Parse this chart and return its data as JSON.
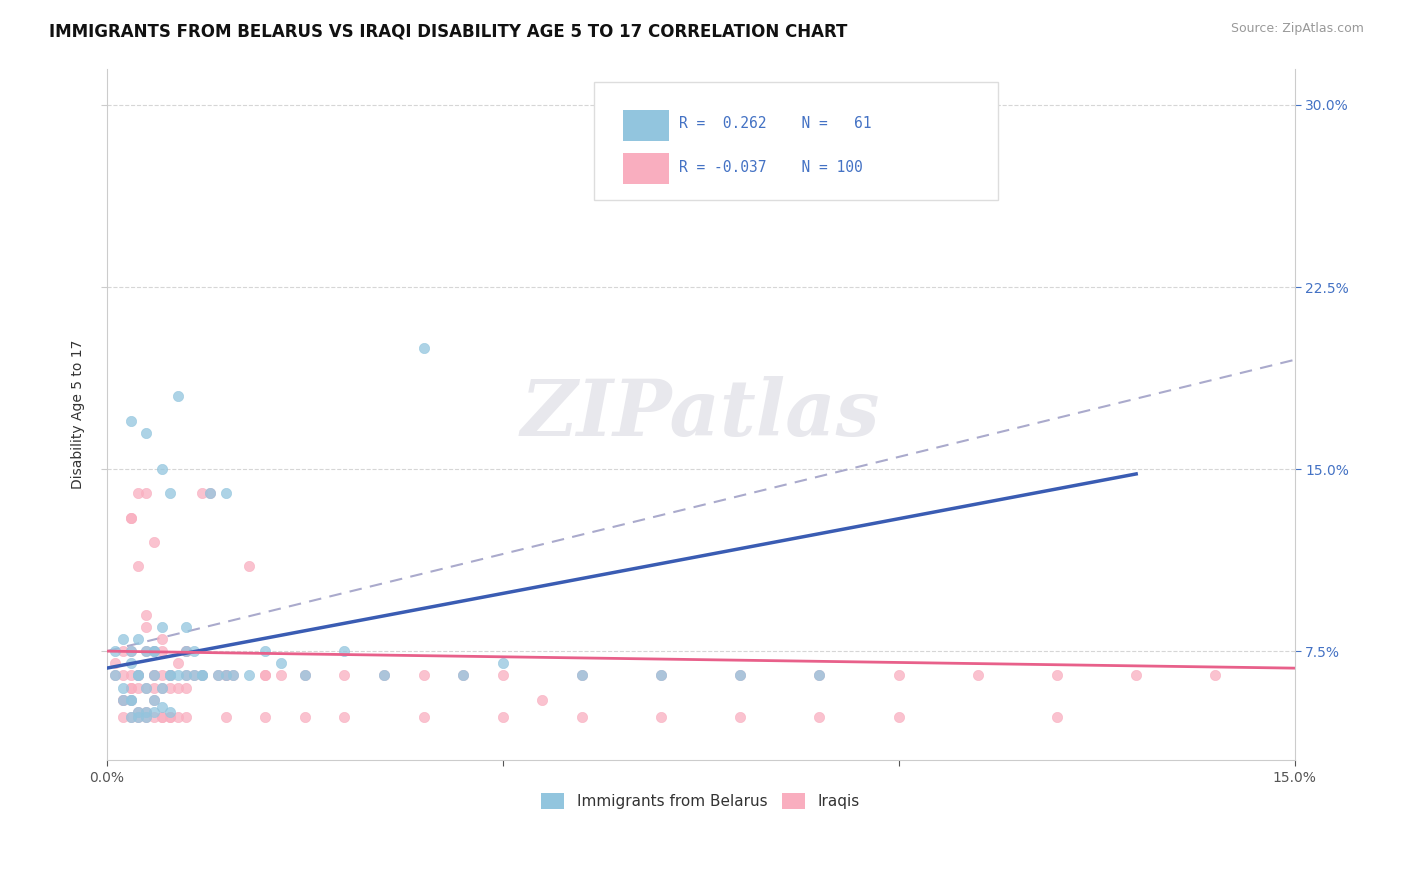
{
  "title": "IMMIGRANTS FROM BELARUS VS IRAQI DISABILITY AGE 5 TO 17 CORRELATION CHART",
  "source_text": "Source: ZipAtlas.com",
  "ylabel": "Disability Age 5 to 17",
  "xlim": [
    0.0,
    0.15
  ],
  "ylim": [
    0.03,
    0.315
  ],
  "xticks": [
    0.0,
    0.05,
    0.1,
    0.15
  ],
  "xtick_labels": [
    "0.0%",
    "",
    "",
    "15.0%"
  ],
  "yticks": [
    0.075,
    0.15,
    0.225,
    0.3
  ],
  "ytick_labels": [
    "7.5%",
    "15.0%",
    "22.5%",
    "30.0%"
  ],
  "color_belarus": "#92C5DE",
  "color_iraq": "#F9AEBF",
  "color_line_belarus": "#3A5CB3",
  "color_line_iraq": "#E8608A",
  "color_dashed_line": "#AAAACC",
  "color_grid": "#CCCCCC",
  "background_color": "#FFFFFF",
  "watermark_color": "#E8E8ED",
  "title_fontsize": 12,
  "axis_label_fontsize": 10,
  "tick_fontsize": 10,
  "right_tick_color": "#4472C4",
  "belarus_x": [
    0.001,
    0.001,
    0.002,
    0.002,
    0.003,
    0.003,
    0.003,
    0.004,
    0.004,
    0.005,
    0.005,
    0.006,
    0.006,
    0.007,
    0.007,
    0.008,
    0.008,
    0.009,
    0.01,
    0.01,
    0.011,
    0.011,
    0.012,
    0.013,
    0.014,
    0.015,
    0.016,
    0.018,
    0.02,
    0.022,
    0.025,
    0.03,
    0.035,
    0.04,
    0.045,
    0.05,
    0.06,
    0.07,
    0.08,
    0.09,
    0.003,
    0.004,
    0.005,
    0.006,
    0.007,
    0.008,
    0.009,
    0.01,
    0.012,
    0.015,
    0.002,
    0.003,
    0.004,
    0.005,
    0.006,
    0.003,
    0.004,
    0.005,
    0.006,
    0.007,
    0.008
  ],
  "belarus_y": [
    0.065,
    0.075,
    0.06,
    0.08,
    0.055,
    0.07,
    0.075,
    0.065,
    0.08,
    0.06,
    0.075,
    0.065,
    0.075,
    0.06,
    0.085,
    0.065,
    0.14,
    0.065,
    0.065,
    0.075,
    0.065,
    0.075,
    0.065,
    0.14,
    0.065,
    0.065,
    0.065,
    0.065,
    0.075,
    0.07,
    0.065,
    0.075,
    0.065,
    0.2,
    0.065,
    0.07,
    0.065,
    0.065,
    0.065,
    0.065,
    0.17,
    0.065,
    0.165,
    0.075,
    0.15,
    0.065,
    0.18,
    0.085,
    0.065,
    0.14,
    0.055,
    0.055,
    0.05,
    0.05,
    0.055,
    0.048,
    0.048,
    0.048,
    0.05,
    0.052,
    0.05
  ],
  "iraq_x": [
    0.001,
    0.001,
    0.002,
    0.002,
    0.002,
    0.003,
    0.003,
    0.003,
    0.004,
    0.004,
    0.005,
    0.005,
    0.006,
    0.006,
    0.007,
    0.007,
    0.008,
    0.008,
    0.009,
    0.01,
    0.01,
    0.011,
    0.012,
    0.013,
    0.014,
    0.015,
    0.016,
    0.018,
    0.02,
    0.022,
    0.025,
    0.03,
    0.035,
    0.04,
    0.045,
    0.05,
    0.055,
    0.06,
    0.07,
    0.08,
    0.09,
    0.1,
    0.11,
    0.12,
    0.13,
    0.14,
    0.003,
    0.004,
    0.005,
    0.006,
    0.007,
    0.008,
    0.01,
    0.012,
    0.015,
    0.02,
    0.002,
    0.003,
    0.004,
    0.005,
    0.006,
    0.007,
    0.008,
    0.003,
    0.004,
    0.005,
    0.006,
    0.007,
    0.008,
    0.009,
    0.01,
    0.002,
    0.003,
    0.004,
    0.005,
    0.006,
    0.007,
    0.008,
    0.009,
    0.01,
    0.015,
    0.02,
    0.025,
    0.03,
    0.04,
    0.05,
    0.06,
    0.07,
    0.08,
    0.09,
    0.1,
    0.12,
    0.003,
    0.004,
    0.005,
    0.006
  ],
  "iraq_y": [
    0.065,
    0.07,
    0.055,
    0.065,
    0.075,
    0.06,
    0.065,
    0.075,
    0.065,
    0.14,
    0.075,
    0.085,
    0.065,
    0.075,
    0.065,
    0.075,
    0.065,
    0.065,
    0.07,
    0.065,
    0.075,
    0.065,
    0.14,
    0.14,
    0.065,
    0.065,
    0.065,
    0.11,
    0.065,
    0.065,
    0.065,
    0.065,
    0.065,
    0.065,
    0.065,
    0.065,
    0.055,
    0.065,
    0.065,
    0.065,
    0.065,
    0.065,
    0.065,
    0.065,
    0.065,
    0.065,
    0.13,
    0.065,
    0.09,
    0.065,
    0.08,
    0.065,
    0.075,
    0.065,
    0.065,
    0.065,
    0.055,
    0.055,
    0.05,
    0.05,
    0.055,
    0.048,
    0.048,
    0.06,
    0.06,
    0.06,
    0.06,
    0.06,
    0.06,
    0.06,
    0.06,
    0.048,
    0.048,
    0.048,
    0.048,
    0.048,
    0.048,
    0.048,
    0.048,
    0.048,
    0.048,
    0.048,
    0.048,
    0.048,
    0.048,
    0.048,
    0.048,
    0.048,
    0.048,
    0.048,
    0.048,
    0.048,
    0.13,
    0.11,
    0.14,
    0.12
  ],
  "blue_line_x": [
    0.0,
    0.13
  ],
  "blue_line_y": [
    0.068,
    0.148
  ],
  "pink_line_x": [
    0.0,
    0.15
  ],
  "pink_line_y": [
    0.075,
    0.068
  ],
  "dash_line_x": [
    0.0,
    0.15
  ],
  "dash_line_y": [
    0.075,
    0.195
  ]
}
